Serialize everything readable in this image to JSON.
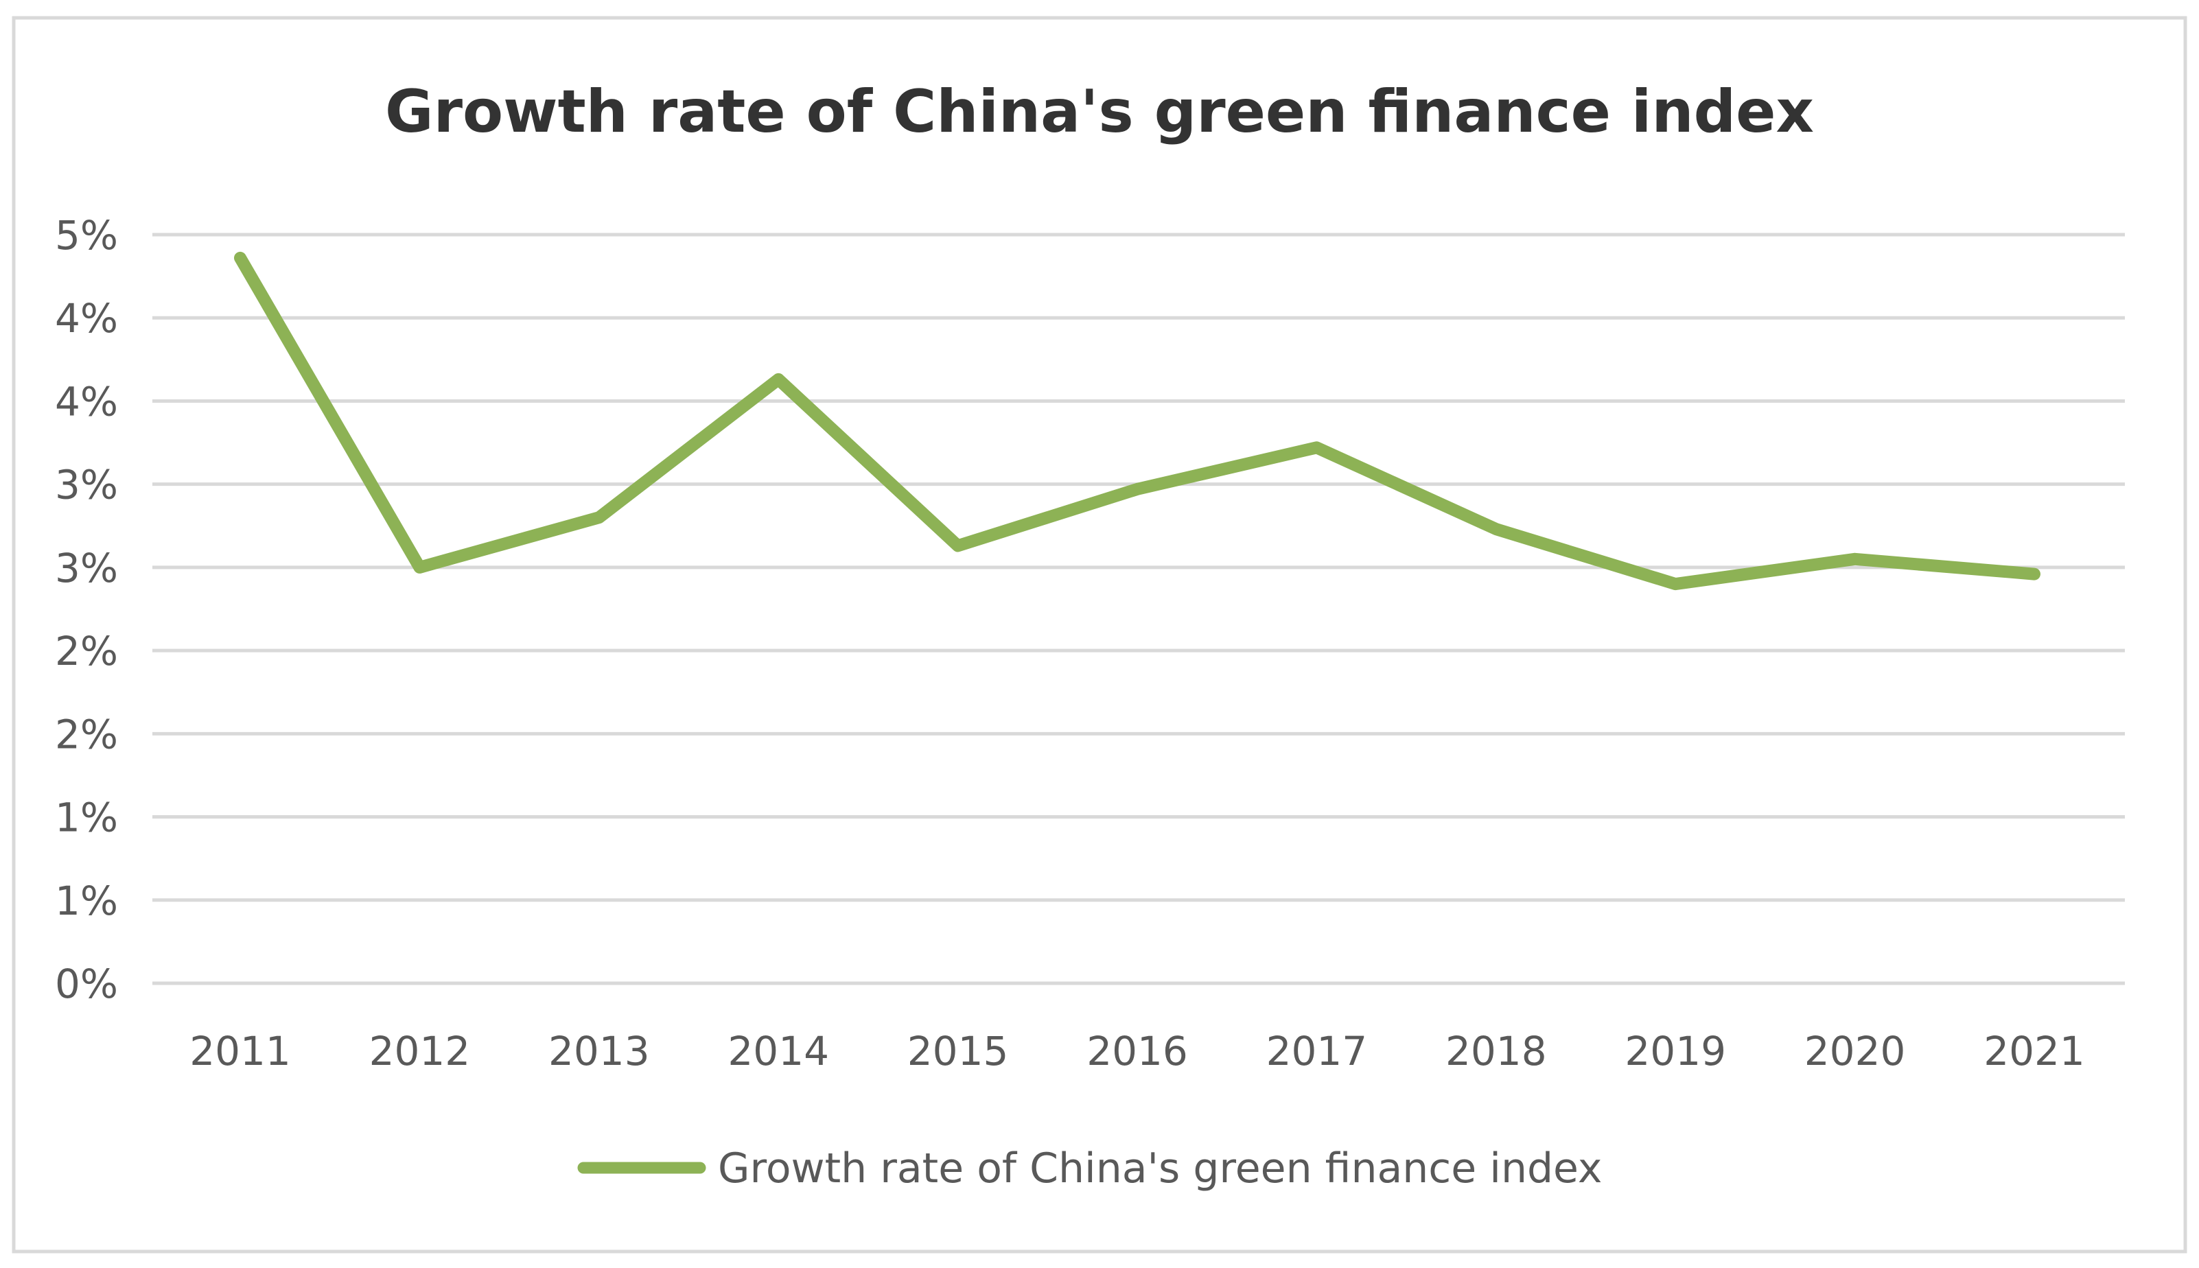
{
  "chart_data": {
    "type": "line",
    "title": "Growth rate of China's green finance index",
    "xlabel": "",
    "ylabel": "",
    "categories": [
      "2011",
      "2012",
      "2013",
      "2014",
      "2015",
      "2016",
      "2017",
      "2018",
      "2019",
      "2020",
      "2021"
    ],
    "series": [
      {
        "name": "Growth rate of China's green finance index",
        "color": "#8DB255",
        "values": [
          4.36,
          2.5,
          2.8,
          3.63,
          2.63,
          2.97,
          3.22,
          2.73,
          2.4,
          2.55,
          2.46
        ]
      }
    ],
    "ylim": [
      0,
      4.5
    ],
    "ytick_values": [
      0,
      0.5,
      1,
      1.5,
      2,
      2.5,
      3,
      3.5,
      4,
      4.5
    ],
    "ytick_labels": [
      "0%",
      "1%",
      "1%",
      "2%",
      "2%",
      "3%",
      "3%",
      "4%",
      "4%",
      "5%"
    ],
    "grid": true,
    "legend_position": "bottom",
    "colors": {
      "line": "#8DB255",
      "grid": "#D9D9D9",
      "frame": "#D9D9D9",
      "title": "#333333",
      "text": "#595959"
    }
  }
}
